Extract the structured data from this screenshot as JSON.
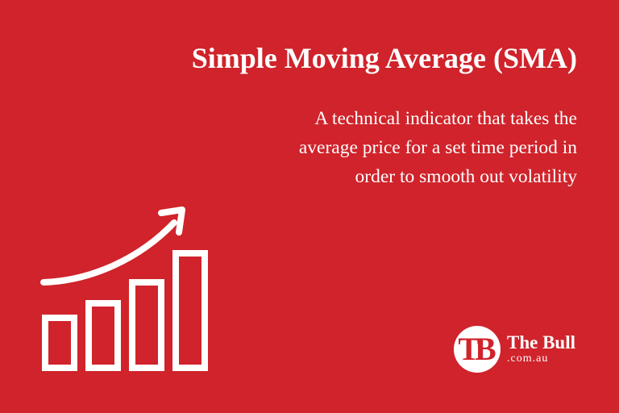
{
  "heading": {
    "title": "Simple Moving Average (SMA)"
  },
  "description": {
    "lines": [
      "A technical indicator that takes the",
      "average price for a set time period in",
      "order to smooth out volatility"
    ]
  },
  "illustration": {
    "icon": "bar-chart-growth-icon"
  },
  "logo": {
    "monogram": "TB",
    "name": "The Bull",
    "domain": ".com.au",
    "icon": "the-bull-logo-icon"
  },
  "colors": {
    "background": "#d0232b",
    "foreground": "#ffffff"
  }
}
